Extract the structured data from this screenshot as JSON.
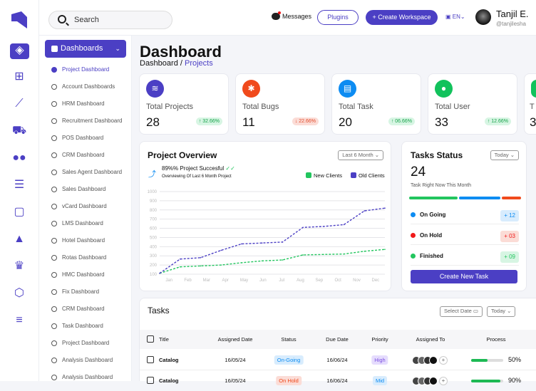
{
  "header": {
    "search_placeholder": "Search",
    "messages": "Messages",
    "plugins": "Plugins",
    "create_workspace": "+ Create Workspace",
    "language": "EN",
    "user_name": "Tanjil E.",
    "user_handle": "@tanjilesha"
  },
  "rail": {
    "icons": [
      "dashboard-icon",
      "apps-icon",
      "chart-icon",
      "cart-icon",
      "users-icon",
      "checklist-icon",
      "chat-icon",
      "graduation-icon",
      "trophy-icon",
      "settings-hex-icon",
      "menu-icon"
    ]
  },
  "sidebar": {
    "dropdown": "Dashboards",
    "items": [
      "Project Dashboard",
      "Account Dashboards",
      "HRM Dashboard",
      "Recruitment Dashboard",
      "POS Dashboard",
      "CRM Dashboard",
      "Sales Agent Dashboard",
      "Sales Dashboard",
      "vCard Dashboard",
      "LMS Dashboard",
      "Hotel Dashboard",
      "Rotas Dashboard",
      "HMC Dashboard",
      "Fix  Dashboard",
      "CRM Dashboard",
      "Task Dashboard",
      "Project Dashboard",
      "Analysis  Dashboard",
      "Analysis  Dashboard"
    ],
    "active": 0
  },
  "page": {
    "title": "Dashboard",
    "breadcrumb_root": "Dashboard",
    "breadcrumb_sep": " / ",
    "breadcrumb_current": "Projects"
  },
  "stats": [
    {
      "label": "Total Projects",
      "value": "28",
      "change": "↑ 32.66%",
      "trend": "up",
      "color": "#4b3fc4",
      "icon": "layers-icon"
    },
    {
      "label": "Total Bugs",
      "value": "11",
      "change": "↓ 22.66%",
      "trend": "down",
      "color": "#f04a1c",
      "icon": "bug-icon"
    },
    {
      "label": "Total Task",
      "value": "20",
      "change": "↑ 06.66%",
      "trend": "up",
      "color": "#0d8cf2",
      "icon": "clipboard-icon"
    },
    {
      "label": "Total User",
      "value": "33",
      "change": "↑ 12.66%",
      "trend": "up",
      "color": "#12c25c",
      "icon": "users-icon"
    },
    {
      "label": "T",
      "value": "3",
      "change": "",
      "trend": "up",
      "color": "#12c25c",
      "icon": "partial-icon"
    }
  ],
  "overview": {
    "title": "Project Overview",
    "range": "Last 6 Month",
    "success": "89%% Project Succesful",
    "subtitle": "Overviewing Of Last 6 Month Project"
  },
  "chart_data": {
    "type": "line",
    "categories": [
      "Jan",
      "Feb",
      "Mar",
      "Apr",
      "May",
      "Jun",
      "Jul",
      "Aug",
      "Sep",
      "Oct",
      "Nov",
      "Dec"
    ],
    "ylim": [
      100,
      1000
    ],
    "yticks": [
      1000,
      900,
      800,
      700,
      600,
      500,
      400,
      300,
      200,
      100
    ],
    "grid": true,
    "legend": "top-right",
    "series": [
      {
        "name": "New Clients",
        "color": "#22c55e",
        "values": [
          110,
          180,
          190,
          200,
          225,
          245,
          255,
          310,
          315,
          320,
          350,
          370
        ]
      },
      {
        "name": "Old Clients",
        "color": "#4b3fc4",
        "values": [
          110,
          265,
          280,
          360,
          430,
          440,
          450,
          610,
          620,
          640,
          790,
          820
        ]
      }
    ]
  },
  "task_status": {
    "title": "Tasks Status",
    "range": "Today",
    "count": "24",
    "subtitle": "Task Right Now This Month",
    "rows": [
      {
        "label": "On Going",
        "badge": "+ 12",
        "color": "#0d8cf2",
        "bg": "#d8ecfd"
      },
      {
        "label": "On Hold",
        "badge": "+ 03",
        "color": "#f01a1a",
        "bg": "#fbdcd6"
      },
      {
        "label": "Finished",
        "badge": "+ 09",
        "color": "#22c55e",
        "bg": "#d7f5e3"
      }
    ],
    "button": "Create New Task"
  },
  "tasks": {
    "title": "Tasks",
    "select_date": "Select Date",
    "range": "Today",
    "columns": [
      "Title",
      "Assigned Date",
      "Status",
      "Due Date",
      "Priority",
      "Assigned To",
      "Process"
    ],
    "rows": [
      {
        "title": "Catalog",
        "assigned": "16/05/24",
        "status": "On-Going",
        "due": "16/06/24",
        "priority": "High",
        "process": "50%",
        "pct": 50
      },
      {
        "title": "Catalog",
        "assigned": "16/05/24",
        "status": "On Hold",
        "due": "16/06/24",
        "priority": "Mid",
        "process": "90%",
        "pct": 90
      }
    ]
  }
}
